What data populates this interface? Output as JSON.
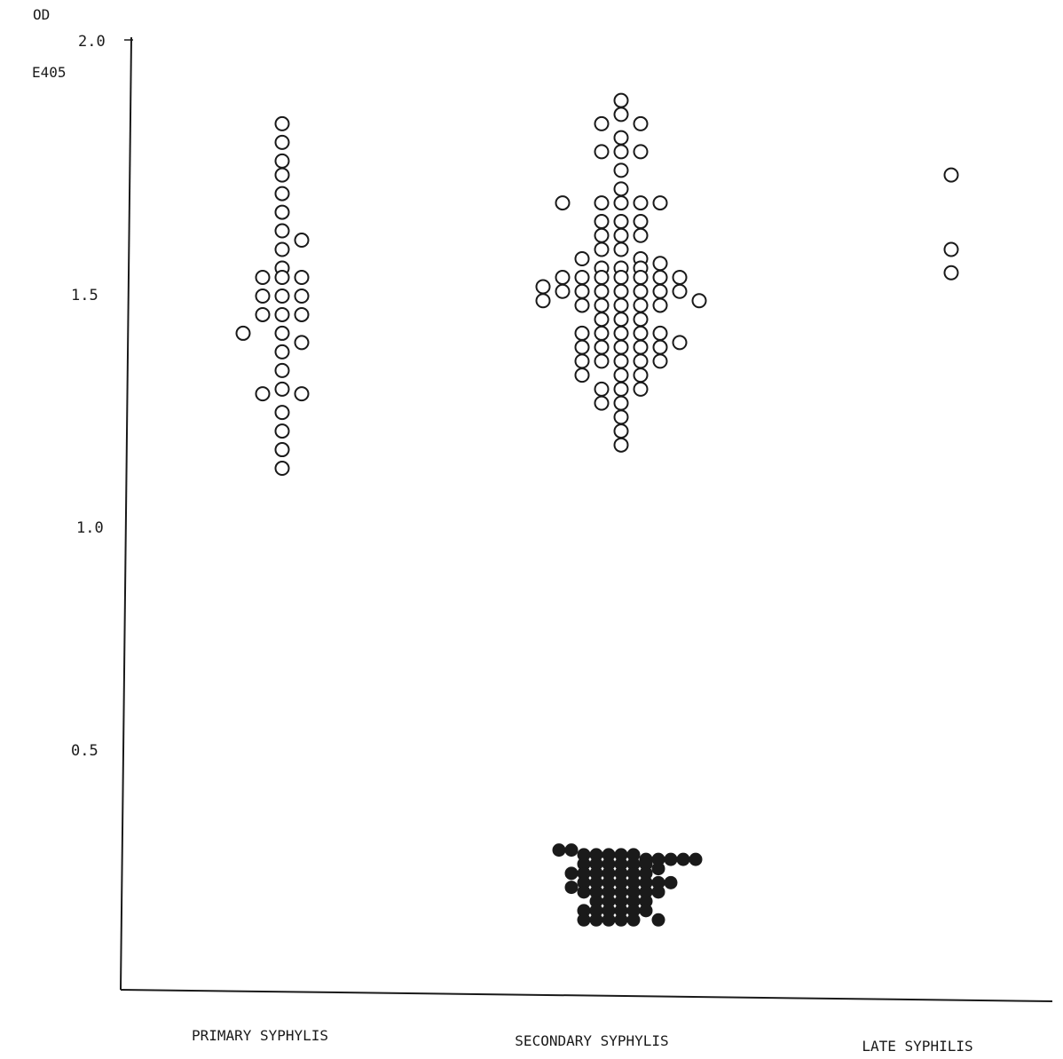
{
  "chart_data": {
    "type": "scatter",
    "title": "",
    "ylabel_line1": "OD",
    "ylabel_line2": "E405",
    "ylim": [
      0.0,
      2.0
    ],
    "yticks": [
      "2.0",
      "1.5",
      "1.0",
      "0.5"
    ],
    "categories": [
      "PRIMARY SYPHYLIS",
      "SECONDARY SYPHYLIS",
      "LATE SYPHILIS"
    ],
    "series": [
      {
        "marker": "open",
        "groups": [
          {
            "category": "PRIMARY SYPHYLIS",
            "points": [
              [
                0,
                1.82
              ],
              [
                0,
                1.78
              ],
              [
                0,
                1.74
              ],
              [
                0,
                1.71
              ],
              [
                0,
                1.67
              ],
              [
                0,
                1.63
              ],
              [
                0,
                1.59
              ],
              [
                1,
                1.57
              ],
              [
                0,
                1.55
              ],
              [
                0,
                1.51
              ],
              [
                -1,
                1.49
              ],
              [
                0,
                1.49
              ],
              [
                1,
                1.49
              ],
              [
                -1,
                1.45
              ],
              [
                0,
                1.45
              ],
              [
                1,
                1.45
              ],
              [
                -1,
                1.41
              ],
              [
                0,
                1.41
              ],
              [
                1,
                1.41
              ],
              [
                -2,
                1.37
              ],
              [
                0,
                1.37
              ],
              [
                1,
                1.35
              ],
              [
                0,
                1.33
              ],
              [
                0,
                1.29
              ],
              [
                0,
                1.25
              ],
              [
                -1,
                1.24
              ],
              [
                1,
                1.24
              ],
              [
                0,
                1.2
              ],
              [
                0,
                1.16
              ],
              [
                0,
                1.12
              ],
              [
                0,
                1.08
              ]
            ]
          },
          {
            "category": "SECONDARY SYPHYLIS",
            "points": [
              [
                0,
                1.87
              ],
              [
                0,
                1.84
              ],
              [
                -1,
                1.82
              ],
              [
                1,
                1.82
              ],
              [
                0,
                1.79
              ],
              [
                -1,
                1.76
              ],
              [
                0,
                1.76
              ],
              [
                1,
                1.76
              ],
              [
                0,
                1.72
              ],
              [
                0,
                1.68
              ],
              [
                -3,
                1.65
              ],
              [
                -1,
                1.65
              ],
              [
                0,
                1.65
              ],
              [
                1,
                1.65
              ],
              [
                2,
                1.65
              ],
              [
                -1,
                1.61
              ],
              [
                0,
                1.61
              ],
              [
                1,
                1.61
              ],
              [
                -1,
                1.58
              ],
              [
                0,
                1.58
              ],
              [
                1,
                1.58
              ],
              [
                -1,
                1.55
              ],
              [
                0,
                1.55
              ],
              [
                -2,
                1.53
              ],
              [
                1,
                1.53
              ],
              [
                2,
                1.52
              ],
              [
                -1,
                1.51
              ],
              [
                0,
                1.51
              ],
              [
                1,
                1.51
              ],
              [
                -3,
                1.49
              ],
              [
                -2,
                1.49
              ],
              [
                -1,
                1.49
              ],
              [
                0,
                1.49
              ],
              [
                1,
                1.49
              ],
              [
                2,
                1.49
              ],
              [
                3,
                1.49
              ],
              [
                -4,
                1.47
              ],
              [
                -3,
                1.46
              ],
              [
                -2,
                1.46
              ],
              [
                -1,
                1.46
              ],
              [
                0,
                1.46
              ],
              [
                1,
                1.46
              ],
              [
                2,
                1.46
              ],
              [
                3,
                1.46
              ],
              [
                -4,
                1.44
              ],
              [
                -2,
                1.43
              ],
              [
                -1,
                1.43
              ],
              [
                0,
                1.43
              ],
              [
                1,
                1.43
              ],
              [
                2,
                1.43
              ],
              [
                4,
                1.44
              ],
              [
                -1,
                1.4
              ],
              [
                0,
                1.4
              ],
              [
                1,
                1.4
              ],
              [
                -2,
                1.37
              ],
              [
                -1,
                1.37
              ],
              [
                0,
                1.37
              ],
              [
                1,
                1.37
              ],
              [
                2,
                1.37
              ],
              [
                -2,
                1.34
              ],
              [
                -1,
                1.34
              ],
              [
                0,
                1.34
              ],
              [
                1,
                1.34
              ],
              [
                2,
                1.34
              ],
              [
                3,
                1.35
              ],
              [
                -2,
                1.31
              ],
              [
                -1,
                1.31
              ],
              [
                0,
                1.31
              ],
              [
                1,
                1.31
              ],
              [
                2,
                1.31
              ],
              [
                -2,
                1.28
              ],
              [
                0,
                1.28
              ],
              [
                1,
                1.28
              ],
              [
                -1,
                1.25
              ],
              [
                0,
                1.25
              ],
              [
                1,
                1.25
              ],
              [
                -1,
                1.22
              ],
              [
                0,
                1.22
              ],
              [
                0,
                1.19
              ],
              [
                0,
                1.16
              ],
              [
                0,
                1.13
              ]
            ]
          },
          {
            "category": "LATE SYPHILIS",
            "points": [
              [
                0,
                1.71
              ],
              [
                0,
                1.55
              ],
              [
                0,
                1.5
              ]
            ]
          }
        ]
      },
      {
        "marker": "filled",
        "groups": [
          {
            "category": "SECONDARY SYPHYLIS",
            "points": [
              [
                -5,
                0.26
              ],
              [
                -4,
                0.26
              ],
              [
                -3,
                0.25
              ],
              [
                -2,
                0.25
              ],
              [
                -1,
                0.25
              ],
              [
                0,
                0.25
              ],
              [
                1,
                0.25
              ],
              [
                2,
                0.24
              ],
              [
                3,
                0.24
              ],
              [
                4,
                0.24
              ],
              [
                5,
                0.24
              ],
              [
                6,
                0.24
              ],
              [
                -3,
                0.23
              ],
              [
                -2,
                0.23
              ],
              [
                -1,
                0.23
              ],
              [
                0,
                0.23
              ],
              [
                1,
                0.23
              ],
              [
                2,
                0.23
              ],
              [
                3,
                0.22
              ],
              [
                -4,
                0.21
              ],
              [
                -3,
                0.21
              ],
              [
                -2,
                0.21
              ],
              [
                -1,
                0.21
              ],
              [
                0,
                0.21
              ],
              [
                1,
                0.21
              ],
              [
                2,
                0.21
              ],
              [
                -3,
                0.19
              ],
              [
                -2,
                0.19
              ],
              [
                -1,
                0.19
              ],
              [
                0,
                0.19
              ],
              [
                1,
                0.19
              ],
              [
                2,
                0.19
              ],
              [
                3,
                0.19
              ],
              [
                4,
                0.19
              ],
              [
                -4,
                0.18
              ],
              [
                -3,
                0.17
              ],
              [
                -2,
                0.17
              ],
              [
                -1,
                0.17
              ],
              [
                0,
                0.17
              ],
              [
                1,
                0.17
              ],
              [
                2,
                0.17
              ],
              [
                3,
                0.17
              ],
              [
                -2,
                0.15
              ],
              [
                -1,
                0.15
              ],
              [
                0,
                0.15
              ],
              [
                1,
                0.15
              ],
              [
                2,
                0.15
              ],
              [
                -3,
                0.13
              ],
              [
                -2,
                0.13
              ],
              [
                -1,
                0.13
              ],
              [
                0,
                0.13
              ],
              [
                1,
                0.13
              ],
              [
                2,
                0.13
              ],
              [
                -3,
                0.11
              ],
              [
                -2,
                0.11
              ],
              [
                -1,
                0.11
              ],
              [
                0,
                0.11
              ],
              [
                1,
                0.11
              ],
              [
                3,
                0.11
              ]
            ]
          }
        ]
      }
    ]
  }
}
